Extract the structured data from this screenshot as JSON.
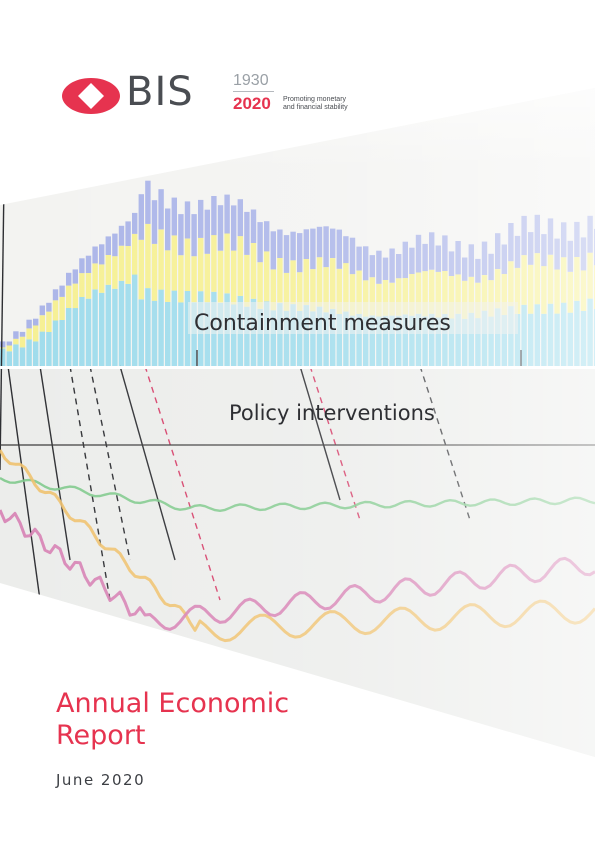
{
  "brand": {
    "name": "BIS",
    "year_start": "1930",
    "year_end": "2020",
    "tagline": [
      "Promoting monetary",
      "and financial stability"
    ],
    "logo_color": "#e6334f"
  },
  "cover": {
    "band_top_label": "Containment measures",
    "band_bottom_label": "Policy interventions",
    "colors": {
      "cyan": "#9fdcec",
      "yellow": "#f6f093",
      "blue": "#aab4e8",
      "green": "#7fc98c",
      "magenta": "#d780b4",
      "orange": "#f0c16e",
      "accent_dashed": "#d6406a"
    }
  },
  "report": {
    "title_line1": "Annual Economic",
    "title_line2": "Report",
    "date": "June 2020"
  }
}
